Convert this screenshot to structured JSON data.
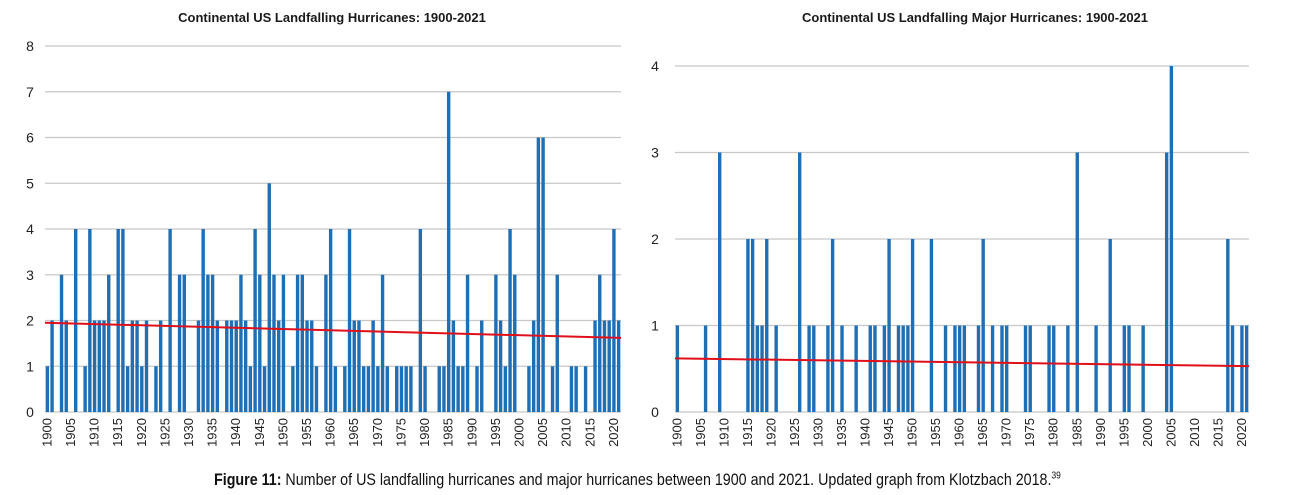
{
  "figure": {
    "caption_label": "Figure 11:",
    "caption_text": " Number of US landfalling hurricanes and major hurricanes between 1900 and 2021. Updated graph from Klotzbach 2018.",
    "caption_ref": "39"
  },
  "chart_data": [
    {
      "type": "bar",
      "title": "Continental US Landfalling Hurricanes: 1900-2021",
      "xlabel": "",
      "ylabel": "",
      "ylim": [
        0,
        8
      ],
      "yticks": [
        0,
        1,
        2,
        3,
        4,
        5,
        6,
        7,
        8
      ],
      "grid": true,
      "x_start": 1900,
      "x_end": 2021,
      "xtick_labels": [
        "1900",
        "1905",
        "1910",
        "1915",
        "1920",
        "1925",
        "1930",
        "1935",
        "1940",
        "1945",
        "1950",
        "1955",
        "1960",
        "1965",
        "1970",
        "1975",
        "1980",
        "1985",
        "1990",
        "1995",
        "2000",
        "2005",
        "2010",
        "2015",
        "2020"
      ],
      "bar_color": "#1f6fb5",
      "values": [
        1,
        2,
        0,
        3,
        2,
        0,
        4,
        0,
        1,
        4,
        2,
        2,
        2,
        3,
        0,
        4,
        4,
        1,
        2,
        2,
        1,
        2,
        0,
        1,
        2,
        0,
        4,
        0,
        3,
        3,
        0,
        0,
        2,
        4,
        3,
        3,
        2,
        0,
        2,
        2,
        2,
        3,
        2,
        1,
        4,
        3,
        1,
        5,
        3,
        2,
        3,
        0,
        1,
        3,
        3,
        2,
        2,
        1,
        0,
        3,
        4,
        1,
        0,
        1,
        4,
        2,
        2,
        1,
        1,
        2,
        1,
        3,
        1,
        0,
        1,
        1,
        1,
        1,
        0,
        4,
        1,
        0,
        0,
        1,
        1,
        7,
        2,
        1,
        1,
        3,
        0,
        1,
        2,
        0,
        0,
        3,
        2,
        1,
        4,
        3,
        0,
        0,
        1,
        2,
        6,
        6,
        0,
        1,
        3,
        0,
        0,
        1,
        1,
        0,
        1,
        0,
        2,
        3,
        2,
        2,
        4,
        2
      ],
      "trendline": {
        "color": "#e0101a",
        "start_value": 1.95,
        "end_value": 1.62
      }
    },
    {
      "type": "bar",
      "title": "Continental US Landfalling Major Hurricanes: 1900-2021",
      "xlabel": "",
      "ylabel": "",
      "ylim": [
        0,
        4
      ],
      "yticks": [
        0,
        1,
        2,
        3,
        4
      ],
      "grid": true,
      "x_start": 1900,
      "x_end": 2021,
      "xtick_labels": [
        "1900",
        "1905",
        "1910",
        "1915",
        "1920",
        "1925",
        "1930",
        "1935",
        "1940",
        "1945",
        "1950",
        "1955",
        "1960",
        "1965",
        "1970",
        "1975",
        "1980",
        "1985",
        "1990",
        "1995",
        "2000",
        "2005",
        "2010",
        "2015",
        "2020"
      ],
      "bar_color": "#1f6fb5",
      "values": [
        1,
        0,
        0,
        0,
        0,
        0,
        1,
        0,
        0,
        3,
        0,
        0,
        0,
        0,
        0,
        2,
        2,
        1,
        1,
        2,
        0,
        1,
        0,
        0,
        0,
        0,
        3,
        0,
        1,
        1,
        0,
        0,
        1,
        2,
        0,
        1,
        0,
        0,
        1,
        0,
        0,
        1,
        1,
        0,
        1,
        2,
        0,
        1,
        1,
        1,
        2,
        0,
        0,
        0,
        2,
        0,
        0,
        1,
        0,
        1,
        1,
        1,
        0,
        0,
        1,
        2,
        0,
        1,
        0,
        1,
        1,
        0,
        0,
        0,
        1,
        1,
        0,
        0,
        0,
        1,
        1,
        0,
        0,
        1,
        0,
        3,
        0,
        0,
        0,
        1,
        0,
        0,
        2,
        0,
        0,
        1,
        1,
        0,
        0,
        1,
        0,
        0,
        0,
        0,
        3,
        4,
        0,
        0,
        0,
        0,
        0,
        0,
        0,
        0,
        0,
        0,
        0,
        2,
        1,
        0,
        1,
        1
      ],
      "trendline": {
        "color": "#e0101a",
        "start_value": 0.62,
        "end_value": 0.53
      }
    }
  ]
}
